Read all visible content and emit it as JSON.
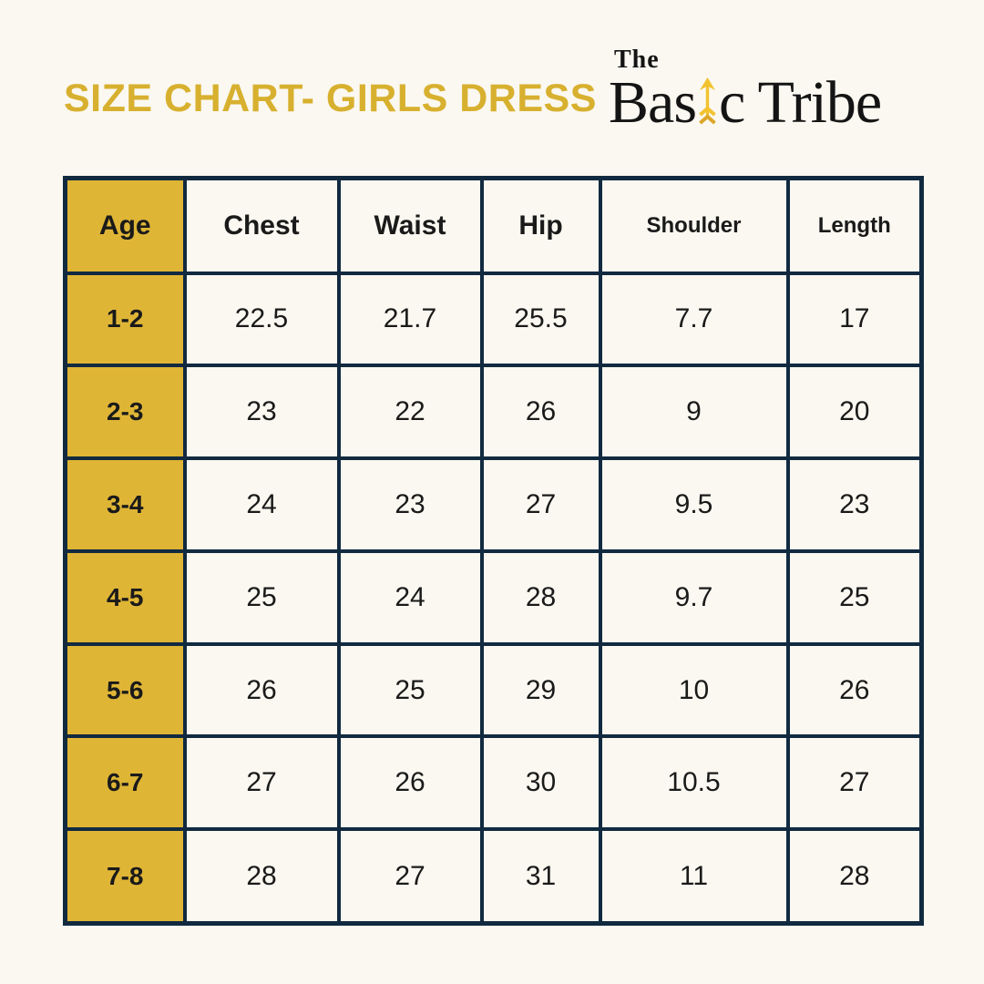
{
  "header": {
    "title": "SIZE CHART- GIRLS DRESS",
    "logo": {
      "the": "The",
      "name_prefix": "Bas",
      "name_suffix": "c Tribe",
      "arrow_icon": "up-arrow-icon"
    }
  },
  "chart_data": {
    "type": "table",
    "title": "SIZE CHART- GIRLS DRESS",
    "columns": [
      "Age",
      "Chest",
      "Waist",
      "Hip",
      "Shoulder",
      "Length"
    ],
    "rows": [
      [
        "1-2",
        22.5,
        21.7,
        25.5,
        7.7,
        17
      ],
      [
        "2-3",
        23,
        22,
        26,
        9,
        20
      ],
      [
        "3-4",
        24,
        23,
        27,
        9.5,
        23
      ],
      [
        "4-5",
        25,
        24,
        28,
        9.7,
        25
      ],
      [
        "5-6",
        26,
        25,
        29,
        10,
        26
      ],
      [
        "6-7",
        27,
        26,
        30,
        10.5,
        27
      ],
      [
        "7-8",
        28,
        27,
        31,
        11,
        28
      ]
    ]
  },
  "colors": {
    "background_cream": "#FAF8F0",
    "title_gold": "#D8B02F",
    "accent_gold": "#DFB536",
    "border_navy": "#112A40",
    "text_dark": "#1A1A1A",
    "logo_black": "#141414",
    "arrow_gold": "#F2C230",
    "arrow_gold_dark": "#DCA728"
  }
}
